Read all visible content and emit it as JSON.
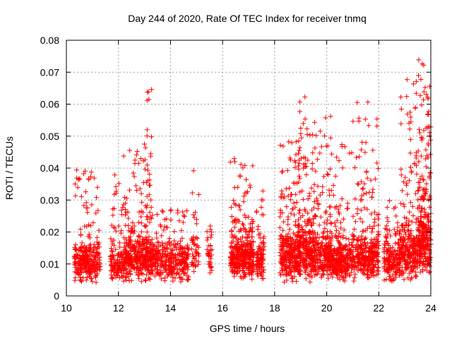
{
  "chart_data": {
    "type": "scatter",
    "title": "Day 244 of 2020, Rate Of TEC Index for receiver tnmq",
    "xlabel": "GPS time / hours",
    "ylabel": "ROTI / TECUs",
    "xlim": [
      10,
      24
    ],
    "ylim": [
      0,
      0.08
    ],
    "x_ticks": [
      10,
      12,
      14,
      16,
      18,
      20,
      22,
      24
    ],
    "y_ticks": [
      0,
      0.01,
      0.02,
      0.03,
      0.04,
      0.05,
      0.06,
      0.07,
      0.08
    ],
    "x_tick_labels": [
      "10",
      "12",
      "14",
      "16",
      "18",
      "20",
      "22",
      "24"
    ],
    "y_tick_labels": [
      "0",
      "0.01",
      "0.02",
      "0.03",
      "0.04",
      "0.05",
      "0.06",
      "0.07",
      "0.08"
    ],
    "grid": true,
    "marker": "plus",
    "series_color": "#ff0000",
    "clusters": [
      {
        "x": [
          10.3,
          11.3
        ],
        "base": [
          0.004,
          0.018
        ],
        "upper": [
          0.018,
          0.04
        ],
        "n_base": 260,
        "n_upper": 40
      },
      {
        "x": [
          11.7,
          12.2
        ],
        "base": [
          0.004,
          0.016
        ],
        "upper": [
          0.016,
          0.04
        ],
        "n_base": 110,
        "n_upper": 25
      },
      {
        "x": [
          12.2,
          13.0
        ],
        "base": [
          0.004,
          0.02
        ],
        "upper": [
          0.02,
          0.047
        ],
        "n_base": 240,
        "n_upper": 45
      },
      {
        "x": [
          13.0,
          13.3
        ],
        "base": [
          0.004,
          0.02
        ],
        "upper": [
          0.02,
          0.065
        ],
        "n_base": 110,
        "n_upper": 40
      },
      {
        "x": [
          13.3,
          14.7
        ],
        "base": [
          0.004,
          0.018
        ],
        "upper": [
          0.018,
          0.027
        ],
        "n_base": 300,
        "n_upper": 30
      },
      {
        "x": [
          14.8,
          15.1
        ],
        "base": [
          0.005,
          0.02
        ],
        "upper": [
          0.02,
          0.044
        ],
        "n_base": 40,
        "n_upper": 8
      },
      {
        "x": [
          15.4,
          15.6
        ],
        "base": [
          0.005,
          0.02
        ],
        "upper": [
          0.02,
          0.022
        ],
        "n_base": 30,
        "n_upper": 4
      },
      {
        "x": [
          16.3,
          17.2
        ],
        "base": [
          0.004,
          0.02
        ],
        "upper": [
          0.02,
          0.044
        ],
        "n_base": 320,
        "n_upper": 60
      },
      {
        "x": [
          17.3,
          17.6
        ],
        "base": [
          0.005,
          0.018
        ],
        "upper": [
          0.018,
          0.034
        ],
        "n_base": 80,
        "n_upper": 15
      },
      {
        "x": [
          18.2,
          19.0
        ],
        "base": [
          0.004,
          0.022
        ],
        "upper": [
          0.022,
          0.05
        ],
        "n_base": 260,
        "n_upper": 60
      },
      {
        "x": [
          18.9,
          19.2
        ],
        "base": [
          0.005,
          0.025
        ],
        "upper": [
          0.025,
          0.065
        ],
        "n_base": 80,
        "n_upper": 30
      },
      {
        "x": [
          19.2,
          20.2
        ],
        "base": [
          0.004,
          0.022
        ],
        "upper": [
          0.022,
          0.057
        ],
        "n_base": 320,
        "n_upper": 80
      },
      {
        "x": [
          20.2,
          21.0
        ],
        "base": [
          0.004,
          0.018
        ],
        "upper": [
          0.018,
          0.048
        ],
        "n_base": 240,
        "n_upper": 40
      },
      {
        "x": [
          21.0,
          22.0
        ],
        "base": [
          0.004,
          0.02
        ],
        "upper": [
          0.02,
          0.062
        ],
        "n_base": 280,
        "n_upper": 70
      },
      {
        "x": [
          22.2,
          22.8
        ],
        "base": [
          0.004,
          0.018
        ],
        "upper": [
          0.018,
          0.03
        ],
        "n_base": 150,
        "n_upper": 25
      },
      {
        "x": [
          22.8,
          23.5
        ],
        "base": [
          0.004,
          0.022
        ],
        "upper": [
          0.022,
          0.069
        ],
        "n_base": 220,
        "n_upper": 60
      },
      {
        "x": [
          23.5,
          24.0
        ],
        "base": [
          0.005,
          0.03
        ],
        "upper": [
          0.03,
          0.076
        ],
        "n_base": 220,
        "n_upper": 80
      }
    ]
  }
}
